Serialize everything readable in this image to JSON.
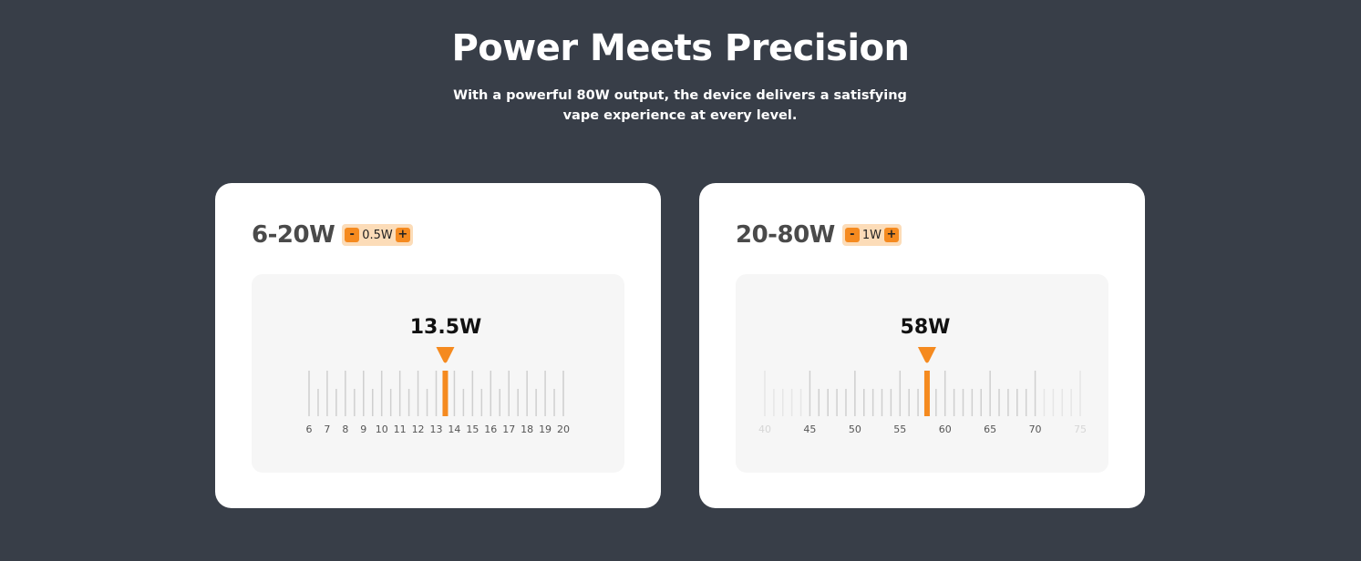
{
  "header": {
    "title": "Power Meets Precision",
    "subtitle": "With a powerful 80W output, the device delivers a satisfying vape experience at every level."
  },
  "cards": [
    {
      "range_label": "6-20W",
      "step_minus": "-",
      "step_value": "0.5W",
      "step_plus": "+",
      "current_value": "13.5W",
      "current_numeric": 13.5,
      "scale_min": 6,
      "scale_max": 20,
      "minor_step": 0.5,
      "tick_labels": [
        "6",
        "7",
        "8",
        "9",
        "10",
        "11",
        "12",
        "13",
        "14",
        "15",
        "16",
        "17",
        "18",
        "19",
        "20"
      ],
      "faded_labels": []
    },
    {
      "range_label": "20-80W",
      "step_minus": "-",
      "step_value": "1W",
      "step_plus": "+",
      "current_value": "58W",
      "current_numeric": 58,
      "scale_min": 40,
      "scale_max": 75,
      "minor_step": 1,
      "tick_labels": [
        "40",
        "45",
        "50",
        "55",
        "60",
        "65",
        "70",
        "75"
      ],
      "faded_labels": [
        "40",
        "75"
      ]
    }
  ],
  "colors": {
    "background": "#383e48",
    "accent": "#f58a1f",
    "pill": "#fcdcb8"
  }
}
